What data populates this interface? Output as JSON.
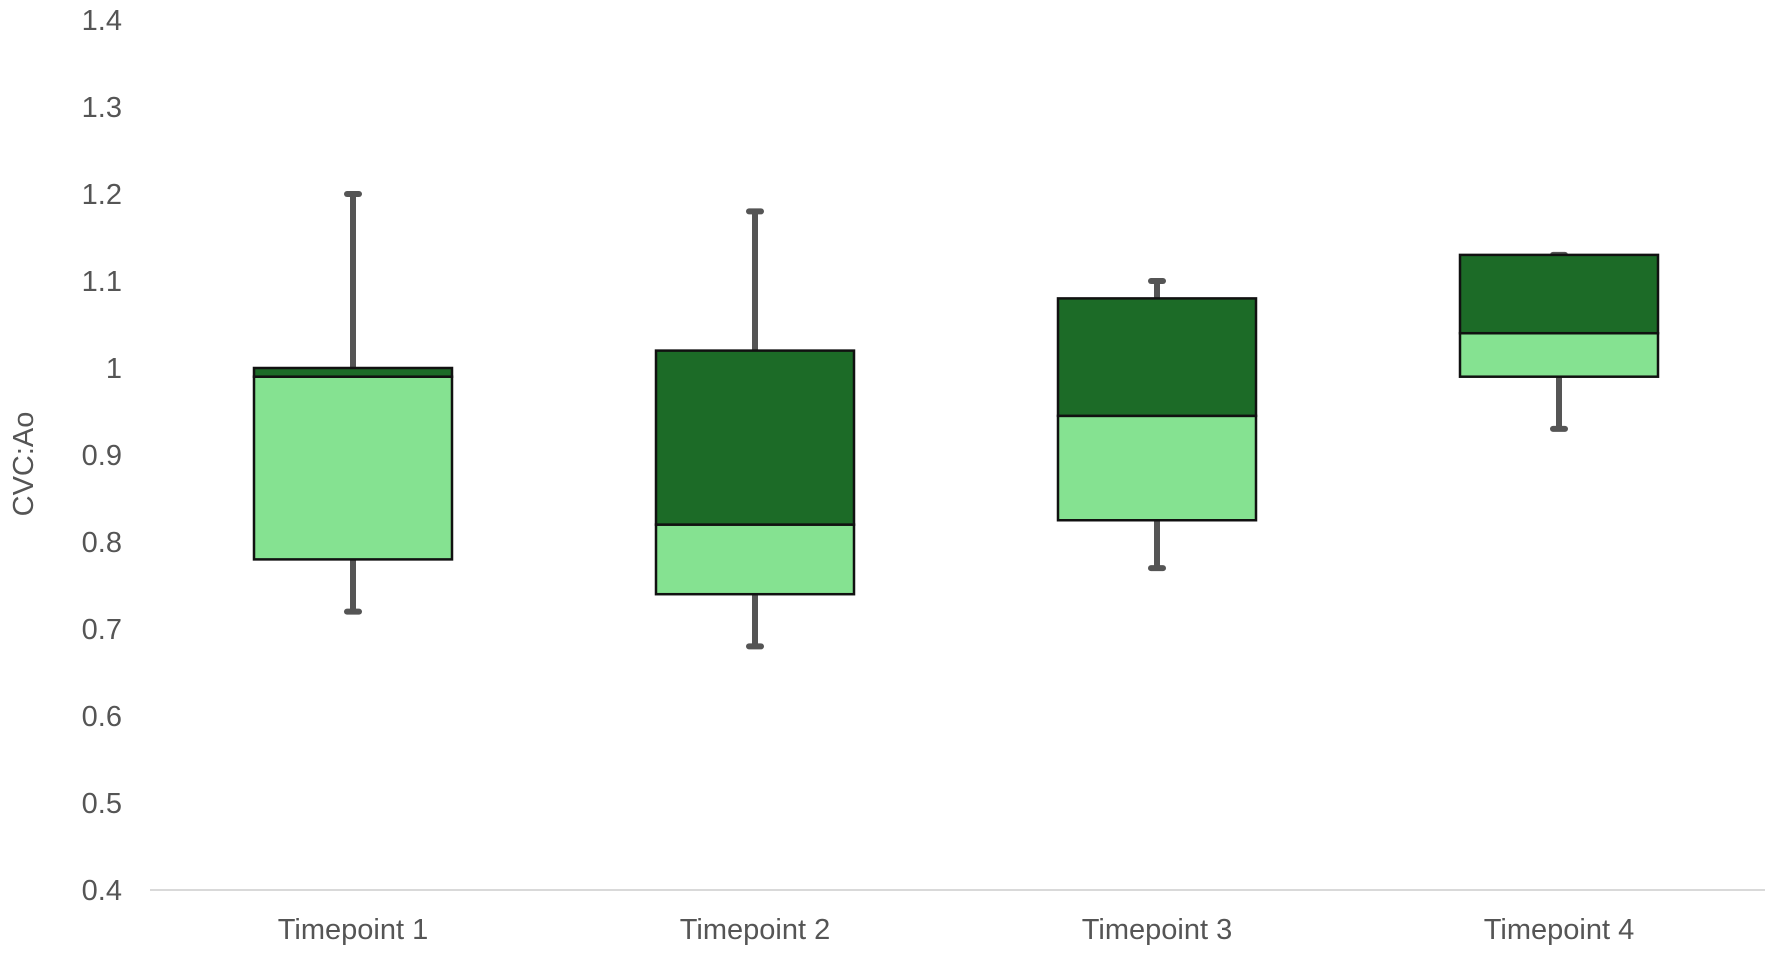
{
  "chart_data": {
    "type": "box",
    "title": "",
    "xlabel": "",
    "ylabel": "CVC:Ao",
    "ylim": [
      0.4,
      1.4
    ],
    "yticks": [
      "0.4",
      "0.5",
      "0.6",
      "0.7",
      "0.8",
      "0.9",
      "1",
      "1.1",
      "1.2",
      "1.3",
      "1.4"
    ],
    "ytick_values": [
      0.4,
      0.5,
      0.6,
      0.7,
      0.8,
      0.9,
      1.0,
      1.1,
      1.2,
      1.3,
      1.4
    ],
    "grid": false,
    "legend": "none",
    "categories": [
      "Timepoint 1",
      "Timepoint 2",
      "Timepoint 3",
      "Timepoint 4"
    ],
    "boxes": [
      {
        "category": "Timepoint 1",
        "min": 0.72,
        "q1": 0.78,
        "median": 0.99,
        "q3": 1.0,
        "max": 1.2
      },
      {
        "category": "Timepoint 2",
        "min": 0.68,
        "q1": 0.74,
        "median": 0.82,
        "q3": 1.02,
        "max": 1.18
      },
      {
        "category": "Timepoint 3",
        "min": 0.77,
        "q1": 0.825,
        "median": 0.945,
        "q3": 1.08,
        "max": 1.1
      },
      {
        "category": "Timepoint 4",
        "min": 0.93,
        "q1": 0.99,
        "median": 1.04,
        "q3": 1.13,
        "max": 1.13
      }
    ],
    "colors": {
      "lower_box": "#85e291",
      "upper_box": "#1c6b27",
      "whisker": "#555555",
      "box_outline": "#111111",
      "axis_line": "#d9d9d9",
      "text": "#555555"
    }
  }
}
